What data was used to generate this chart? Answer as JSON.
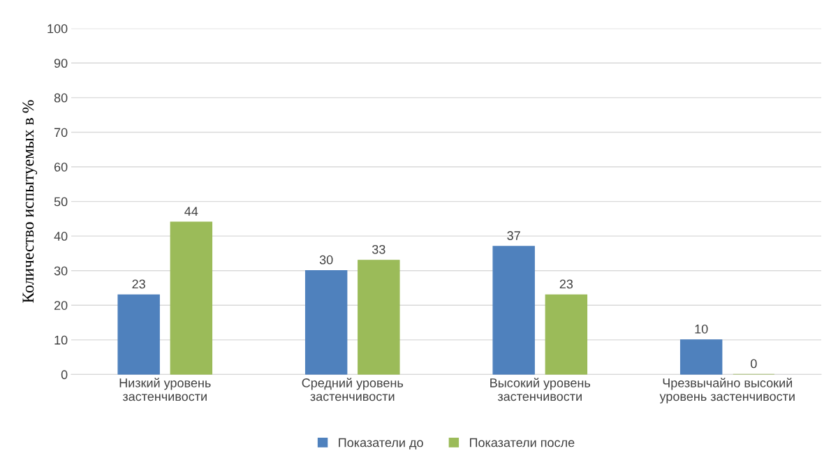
{
  "chart_data": {
    "type": "bar",
    "ylabel": "Количество испытуемых в %",
    "categories": [
      "Низкий уровень\nзастенчивости",
      "Средний уровень\nзастенчивости",
      "Высокий уровень\nзастенчивости",
      "Чрезвычайно высокий\nуровень застенчивости"
    ],
    "series": [
      {
        "name": "Показатели до",
        "color": "#4f81bd",
        "values": [
          23,
          30,
          37,
          10
        ]
      },
      {
        "name": "Показатели после",
        "color": "#9bbb59",
        "values": [
          44,
          33,
          23,
          0
        ]
      }
    ],
    "ylim": [
      0,
      100
    ],
    "yticks": [
      0,
      10,
      20,
      30,
      40,
      50,
      60,
      70,
      80,
      90,
      100
    ],
    "grid": "y",
    "legend": "bottom",
    "data_labels": true
  }
}
